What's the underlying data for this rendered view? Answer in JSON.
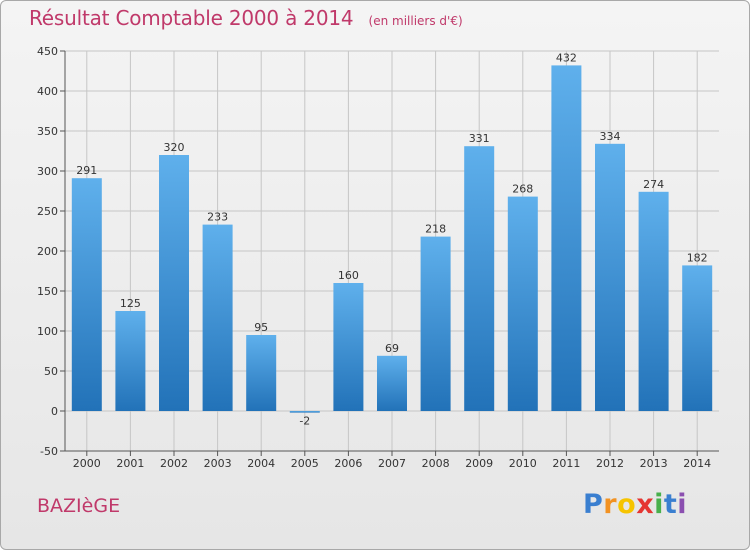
{
  "header": {
    "title": "Résultat Comptable 2000 à 2014",
    "subtitle": "(en milliers d'€)"
  },
  "footer": {
    "commune": "BAZIèGE",
    "logo": {
      "letters": [
        "P",
        "r",
        "o",
        "x",
        "i",
        "t",
        "i"
      ],
      "colors": [
        "#3a7fd0",
        "#f29222",
        "#f6c400",
        "#e53632",
        "#49b04c",
        "#3a7fd0",
        "#8b4fb0"
      ]
    }
  },
  "colors": {
    "bar_top": "#5fb0ec",
    "bar_bottom": "#2272b8",
    "grid": "#c6c6c6",
    "axis": "#555555",
    "title": "#c0396a"
  },
  "chart_data": {
    "type": "bar",
    "categories": [
      "2000",
      "2001",
      "2002",
      "2003",
      "2004",
      "2005",
      "2006",
      "2007",
      "2008",
      "2009",
      "2010",
      "2011",
      "2012",
      "2013",
      "2014"
    ],
    "values": [
      291,
      125,
      320,
      233,
      95,
      -2,
      160,
      69,
      218,
      331,
      268,
      432,
      334,
      274,
      182
    ],
    "data_labels": [
      "291",
      "125",
      "320",
      "233",
      "95",
      "-2",
      "160",
      "69",
      "218",
      "331",
      "268",
      "432",
      "334",
      "274",
      "182"
    ],
    "title": "Résultat Comptable 2000 à 2014",
    "subtitle": "(en milliers d'€)",
    "xlabel": "",
    "ylabel": "",
    "ylim": [
      -50,
      450
    ],
    "yticks": [
      -50,
      0,
      50,
      100,
      150,
      200,
      250,
      300,
      350,
      400,
      450
    ],
    "grid": true,
    "legend": "none"
  }
}
